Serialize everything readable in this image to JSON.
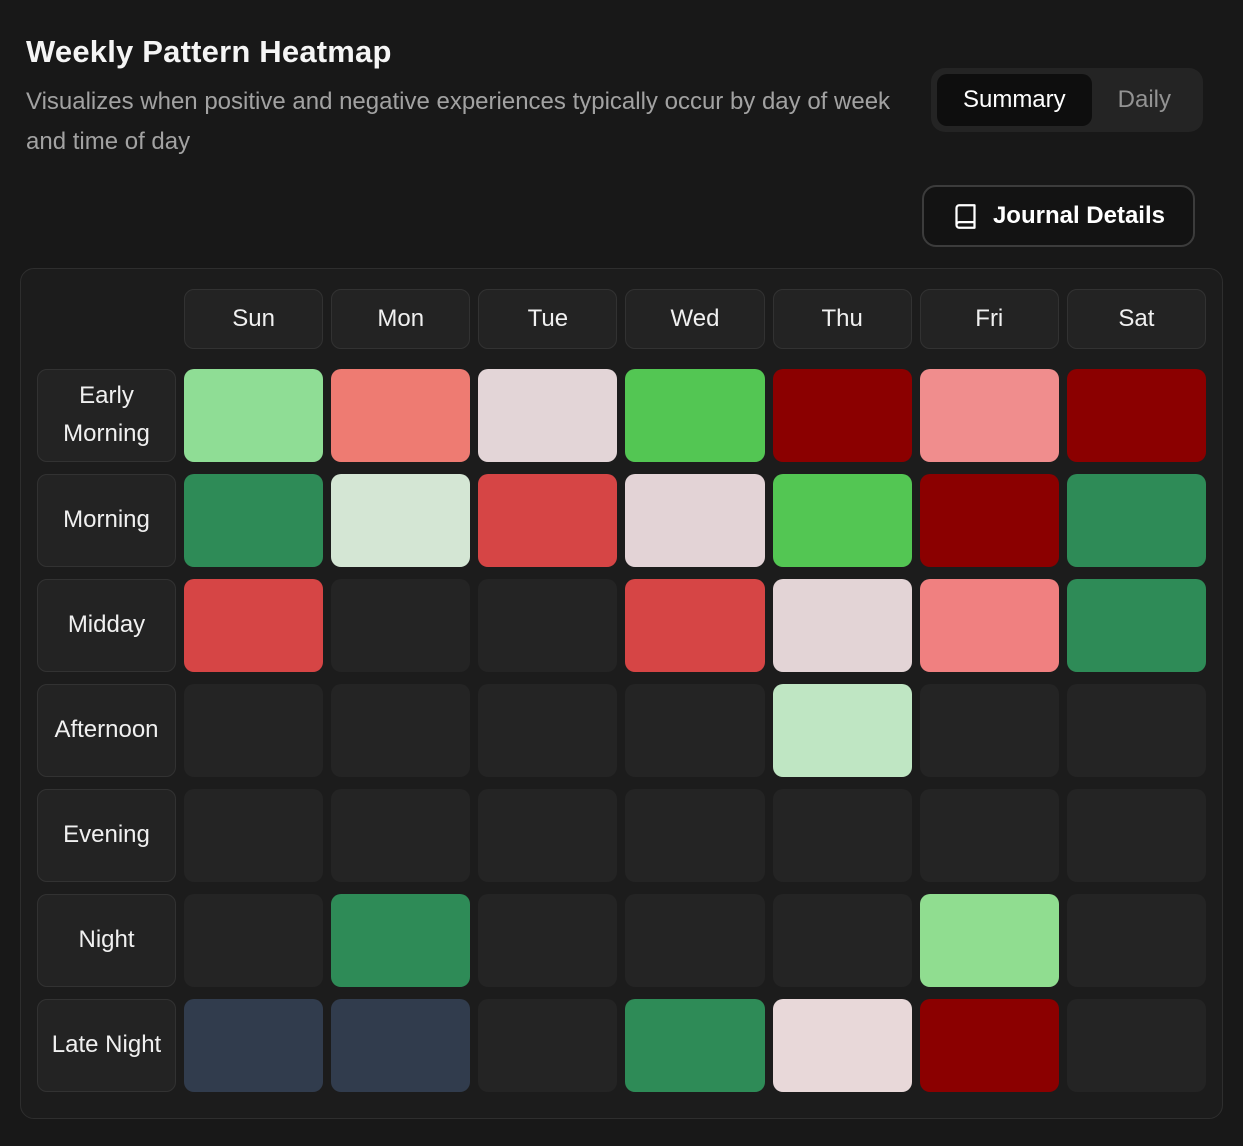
{
  "header": {
    "title": "Weekly Pattern Heatmap",
    "subtitle": "Visualizes when positive and negative experiences typically occur by day of week and time of day",
    "view_toggle": {
      "options": [
        "Summary",
        "Daily"
      ],
      "active": "Summary"
    },
    "journal_button": {
      "label": "Journal Details",
      "icon": "book-icon"
    }
  },
  "heatmap": {
    "columns": [
      "Sun",
      "Mon",
      "Tue",
      "Wed",
      "Thu",
      "Fri",
      "Sat"
    ],
    "rows": [
      "Early Morning",
      "Morning",
      "Midday",
      "Afternoon",
      "Evening",
      "Night",
      "Late Night"
    ],
    "empty_color": "#242424",
    "cells": [
      [
        "#8fdd95",
        "#ee7b72",
        "#e3d5d7",
        "#53c653",
        "#8b0000",
        "#f08d8d",
        "#8b0000"
      ],
      [
        "#2e8b57",
        "#d4e6d4",
        "#d64545",
        "#e3d3d6",
        "#53c653",
        "#8b0000",
        "#2e8b57"
      ],
      [
        "#d64545",
        null,
        null,
        "#d64545",
        "#e3d4d6",
        "#f08080",
        "#2e8b57"
      ],
      [
        null,
        null,
        null,
        null,
        "#bfe6c3",
        null,
        null
      ],
      [
        null,
        null,
        null,
        null,
        null,
        null,
        null
      ],
      [
        null,
        "#2e8b57",
        null,
        null,
        null,
        "#90dd90",
        null
      ],
      [
        "#313c4d",
        "#313c4d",
        null,
        "#2e8b57",
        "#e8d8d9",
        "#8b0000",
        null
      ]
    ]
  },
  "chart_data": {
    "type": "heatmap",
    "title": "Weekly Pattern Heatmap",
    "x_categories": [
      "Sun",
      "Mon",
      "Tue",
      "Wed",
      "Thu",
      "Fri",
      "Sat"
    ],
    "y_categories": [
      "Early Morning",
      "Morning",
      "Midday",
      "Afternoon",
      "Evening",
      "Night",
      "Late Night"
    ],
    "cell_colors": [
      [
        "#8fdd95",
        "#ee7b72",
        "#e3d5d7",
        "#53c653",
        "#8b0000",
        "#f08d8d",
        "#8b0000"
      ],
      [
        "#2e8b57",
        "#d4e6d4",
        "#d64545",
        "#e3d3d6",
        "#53c653",
        "#8b0000",
        "#2e8b57"
      ],
      [
        "#d64545",
        null,
        null,
        "#d64545",
        "#e3d4d6",
        "#f08080",
        "#2e8b57"
      ],
      [
        null,
        null,
        null,
        null,
        "#bfe6c3",
        null,
        null
      ],
      [
        null,
        null,
        null,
        null,
        null,
        null,
        null
      ],
      [
        null,
        "#2e8b57",
        null,
        null,
        null,
        "#90dd90",
        null
      ],
      [
        "#313c4d",
        "#313c4d",
        null,
        "#2e8b57",
        "#e8d8d9",
        "#8b0000",
        null
      ]
    ],
    "no_data_color": "#242424",
    "legend_position": "none",
    "grid": false
  }
}
